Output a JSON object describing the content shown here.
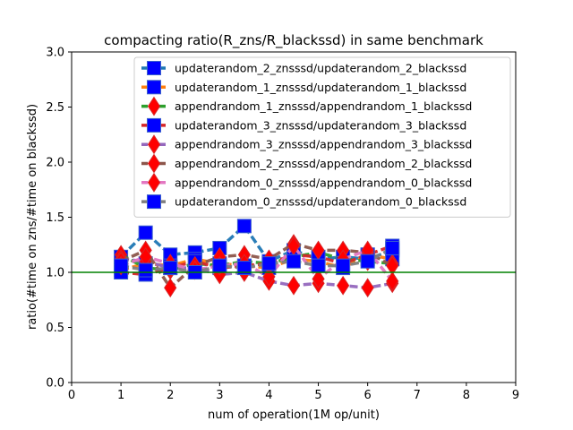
{
  "chart_data": {
    "type": "line",
    "title": "compacting ratio(R_zns/R_blackssd) in same benchmark",
    "xlabel": "num of operation(1M op/unit)",
    "ylabel": "ratio(#time on zns/#time on blackssd)",
    "xlim": [
      0,
      9
    ],
    "ylim": [
      0,
      3.0
    ],
    "xticks": [
      "0",
      "1",
      "2",
      "3",
      "4",
      "5",
      "6",
      "7",
      "8",
      "9"
    ],
    "yticks": [
      "0.0",
      "0.5",
      "1.0",
      "1.5",
      "2.0",
      "2.5",
      "3.0"
    ],
    "grid": false,
    "legend_position": "upper-right",
    "reference_line": {
      "y": 1.0,
      "color": "#008000"
    },
    "x": [
      1,
      1.5,
      2,
      2.5,
      3,
      3.5,
      4,
      4.5,
      5,
      5.5,
      6,
      6.5
    ],
    "series": [
      {
        "name": "updaterandom_2_znsssd/updaterandom_2_blackssd",
        "color": "#1f77b4",
        "marker": "square",
        "values": [
          1.14,
          1.36,
          1.16,
          1.18,
          1.22,
          1.42,
          1.1,
          1.2,
          1.12,
          1.14,
          1.12,
          1.2
        ]
      },
      {
        "name": "updaterandom_1_znsssd/updaterandom_1_blackssd",
        "color": "#ff7f0e",
        "marker": "square",
        "values": [
          1.02,
          1.08,
          1.06,
          1.12,
          1.08,
          1.06,
          1.04,
          1.12,
          1.1,
          1.04,
          1.16,
          1.12
        ]
      },
      {
        "name": "appendrandom_1_znsssd/appendrandom_1_blackssd",
        "color": "#2ca02c",
        "marker": "diamond",
        "values": [
          1.16,
          1.04,
          1.02,
          1.08,
          1.06,
          1.1,
          1.08,
          1.14,
          1.18,
          1.12,
          1.1,
          1.08
        ]
      },
      {
        "name": "updaterandom_3_znsssd/updaterandom_3_blackssd",
        "color": "#d62728",
        "marker": "square",
        "values": [
          1.0,
          0.98,
          1.04,
          1.1,
          1.04,
          1.06,
          1.08,
          1.16,
          1.14,
          1.08,
          1.16,
          1.24
        ]
      },
      {
        "name": "appendrandom_3_znsssd/appendrandom_3_blackssd",
        "color": "#9467bd",
        "marker": "diamond",
        "values": [
          1.12,
          1.1,
          1.04,
          1.04,
          0.98,
          1.0,
          0.92,
          0.88,
          0.9,
          0.88,
          0.86,
          0.9
        ]
      },
      {
        "name": "appendrandom_2_znsssd/appendrandom_2_blackssd",
        "color": "#8c564b",
        "marker": "diamond",
        "values": [
          1.1,
          1.2,
          0.86,
          1.06,
          1.14,
          1.16,
          1.12,
          1.26,
          1.2,
          1.2,
          1.18,
          1.06
        ]
      },
      {
        "name": "appendrandom_0_znsssd/appendrandom_0_blackssd",
        "color": "#e377c2",
        "marker": "diamond",
        "values": [
          1.06,
          1.14,
          1.08,
          1.02,
          1.06,
          1.08,
          0.96,
          1.24,
          0.94,
          1.12,
          1.2,
          0.92
        ]
      },
      {
        "name": "updaterandom_0_znsssd/updaterandom_0_blackssd",
        "color": "#7f7f7f",
        "marker": "square",
        "values": [
          1.06,
          1.02,
          1.04,
          1.0,
          1.06,
          1.04,
          1.08,
          1.1,
          1.06,
          1.06,
          1.1,
          1.22
        ]
      }
    ]
  }
}
